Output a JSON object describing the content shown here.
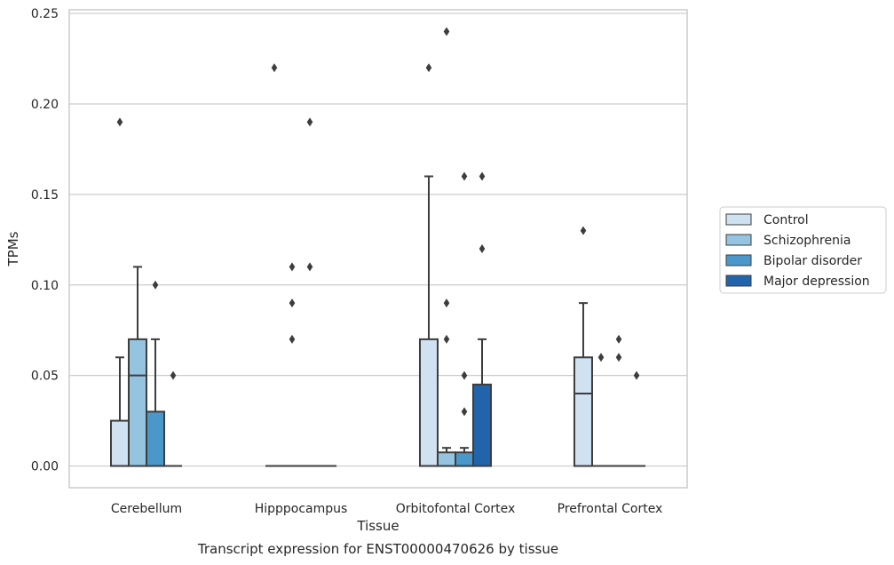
{
  "chart_data": {
    "type": "box",
    "title": "",
    "caption": "Transcript expression for ENST00000470626 by tissue",
    "xlabel": "Tissue",
    "ylabel": "TPMs",
    "ylim": [
      -0.012,
      0.252
    ],
    "yticks": [
      "0.00",
      "0.05",
      "0.10",
      "0.15",
      "0.20",
      "0.25"
    ],
    "ytick_values": [
      0,
      0.05,
      0.1,
      0.15,
      0.2,
      0.25
    ],
    "grid": "horizontal",
    "legend_position": "right",
    "categories": [
      "Cerebellum",
      "Hipppocampus",
      "Orbitofontal Cortex",
      "Prefrontal Cortex"
    ],
    "series": [
      {
        "name": "Control",
        "color": "#d0e1f2",
        "boxes": [
          {
            "whisker_low": 0,
            "q1": 0,
            "median": 0,
            "q3": 0.025,
            "whisker_high": 0.06,
            "outliers": [
              0.19
            ]
          },
          {
            "whisker_low": 0,
            "q1": 0,
            "median": 0,
            "q3": 0,
            "whisker_high": 0,
            "outliers": [
              0.22
            ]
          },
          {
            "whisker_low": 0,
            "q1": 0,
            "median": 0,
            "q3": 0.07,
            "whisker_high": 0.16,
            "outliers": [
              0.22
            ]
          },
          {
            "whisker_low": 0,
            "q1": 0,
            "median": 0.04,
            "q3": 0.06,
            "whisker_high": 0.09,
            "outliers": [
              0.13
            ]
          }
        ]
      },
      {
        "name": "Schizophrenia",
        "color": "#94c4df",
        "boxes": [
          {
            "whisker_low": 0,
            "q1": 0,
            "median": 0.05,
            "q3": 0.07,
            "whisker_high": 0.11,
            "outliers": []
          },
          {
            "whisker_low": 0,
            "q1": 0,
            "median": 0,
            "q3": 0,
            "whisker_high": 0,
            "outliers": [
              0.07,
              0.09,
              0.11
            ]
          },
          {
            "whisker_low": 0,
            "q1": 0,
            "median": 0,
            "q3": 0.0075,
            "whisker_high": 0.01,
            "outliers": [
              0.07,
              0.09,
              0.24
            ]
          },
          {
            "whisker_low": 0,
            "q1": 0,
            "median": 0,
            "q3": 0,
            "whisker_high": 0,
            "outliers": [
              0.06
            ]
          }
        ]
      },
      {
        "name": "Bipolar disorder",
        "color": "#4a98c9",
        "boxes": [
          {
            "whisker_low": 0,
            "q1": 0,
            "median": 0,
            "q3": 0.03,
            "whisker_high": 0.07,
            "outliers": [
              0.1
            ]
          },
          {
            "whisker_low": 0,
            "q1": 0,
            "median": 0,
            "q3": 0,
            "whisker_high": 0,
            "outliers": [
              0.11,
              0.19
            ]
          },
          {
            "whisker_low": 0,
            "q1": 0,
            "median": 0,
            "q3": 0.0075,
            "whisker_high": 0.01,
            "outliers": [
              0.03,
              0.05,
              0.16
            ]
          },
          {
            "whisker_low": 0,
            "q1": 0,
            "median": 0,
            "q3": 0,
            "whisker_high": 0,
            "outliers": [
              0.06,
              0.07
            ]
          }
        ]
      },
      {
        "name": "Major depression",
        "color": "#2164ab",
        "boxes": [
          {
            "whisker_low": 0,
            "q1": 0,
            "median": 0,
            "q3": 0,
            "whisker_high": 0,
            "outliers": [
              0.05
            ]
          },
          {
            "whisker_low": 0,
            "q1": 0,
            "median": 0,
            "q3": 0,
            "whisker_high": 0,
            "outliers": []
          },
          {
            "whisker_low": 0,
            "q1": 0,
            "median": 0,
            "q3": 0.045,
            "whisker_high": 0.07,
            "outliers": [
              0.12,
              0.16
            ]
          },
          {
            "whisker_low": 0,
            "q1": 0,
            "median": 0,
            "q3": 0,
            "whisker_high": 0,
            "outliers": [
              0.05
            ]
          }
        ]
      }
    ]
  }
}
